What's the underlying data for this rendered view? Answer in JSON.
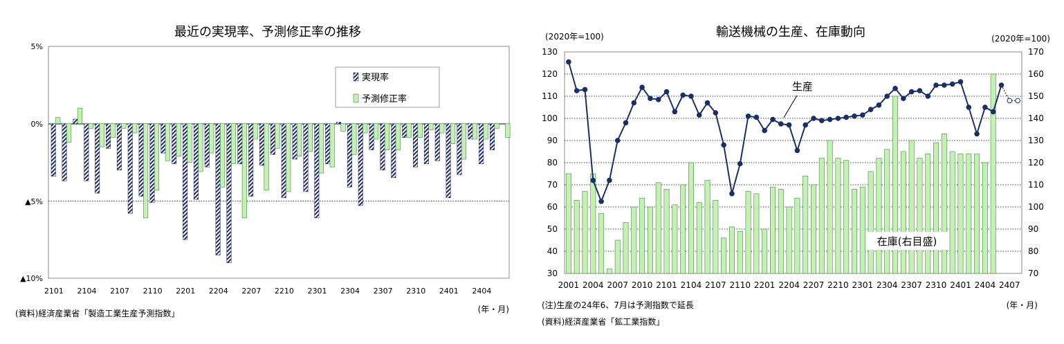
{
  "left": {
    "title": "最近の実現率、予測修正率の推移",
    "legend": [
      "実現率",
      "予測修正率"
    ],
    "source": "(資料)経済産業省「製造工業生産予測指数」",
    "unit": "(年・月)",
    "y_tick_labels": [
      "5%",
      "0%",
      "▲5%",
      "▲10%"
    ],
    "x_tick_labels": [
      "2101",
      "2104",
      "2107",
      "2110",
      "2201",
      "2204",
      "2207",
      "2210",
      "2301",
      "2304",
      "2307",
      "2310",
      "2401",
      "2404"
    ]
  },
  "right": {
    "title": "輸送機械の生産、在庫動向",
    "left_unit": "(2020年=100)",
    "right_unit": "(2020年=100)",
    "production_label": "生産",
    "inventory_label": "在庫(右目盛)",
    "unit": "(年・月)",
    "note": "(注)生産の24年6、7月は予測指数で延長",
    "source": "(資料)経済産業省「鉱工業指数」",
    "y_left_tick_labels": [
      "130",
      "120",
      "110",
      "100",
      "90",
      "80",
      "70",
      "60",
      "50",
      "40",
      "30"
    ],
    "y_right_tick_labels": [
      "170",
      "160",
      "150",
      "140",
      "130",
      "120",
      "110",
      "100",
      "90",
      "80",
      "70"
    ],
    "x_tick_labels": [
      "2001",
      "2004",
      "2007",
      "2010",
      "2101",
      "2104",
      "2107",
      "2110",
      "2201",
      "2204",
      "2207",
      "2210",
      "2301",
      "2304",
      "2307",
      "2310",
      "2401",
      "2404",
      "2407"
    ]
  },
  "chart_data": [
    {
      "type": "bar",
      "title": "最近の実現率、予測修正率の推移",
      "xlabel": "(年・月)",
      "ylabel": "",
      "ylim": [
        -10,
        5
      ],
      "grid": "dotted line at -5%",
      "legend_position": "top-right",
      "categories": [
        "2101",
        "2102",
        "2103",
        "2104",
        "2105",
        "2106",
        "2107",
        "2108",
        "2109",
        "2110",
        "2111",
        "2112",
        "2201",
        "2202",
        "2203",
        "2204",
        "2205",
        "2206",
        "2207",
        "2208",
        "2209",
        "2210",
        "2211",
        "2212",
        "2301",
        "2302",
        "2303",
        "2304",
        "2305",
        "2306",
        "2307",
        "2308",
        "2309",
        "2310",
        "2311",
        "2312",
        "2401",
        "2402",
        "2403",
        "2404",
        "2405",
        "2406"
      ],
      "series": [
        {
          "name": "実現率",
          "pattern": "hatched",
          "color": "#1f2a6b",
          "values": [
            -3.4,
            -3.7,
            0.3,
            -3.7,
            -4.5,
            -1.6,
            -3.0,
            -5.8,
            -4.7,
            -5.1,
            -1.9,
            -2.6,
            -7.5,
            -4.9,
            -2.8,
            -8.5,
            -9.0,
            -2.6,
            -4.7,
            -2.7,
            -2.0,
            -4.8,
            -2.3,
            -4.4,
            -6.1,
            -2.6,
            0.1,
            -4.1,
            -5.3,
            -1.7,
            -3.0,
            -3.5,
            -0.9,
            -2.8,
            -2.6,
            -2.4,
            -4.8,
            -3.3,
            -1.0,
            -2.6,
            -1.7,
            0.0
          ]
        },
        {
          "name": "予測修正率",
          "pattern": "solid",
          "color": "#c6efb5",
          "values": [
            0.4,
            -1.2,
            1.0,
            -0.3,
            -1.5,
            -0.9,
            -0.3,
            -0.6,
            -6.1,
            -4.3,
            -2.4,
            -2.1,
            -2.5,
            -3.1,
            -1.9,
            -4.1,
            -2.6,
            -6.1,
            -1.0,
            -4.3,
            -1.6,
            -4.4,
            -2.1,
            -1.8,
            -3.2,
            -2.8,
            -0.5,
            -2.0,
            -0.6,
            -1.0,
            -1.7,
            -1.7,
            -0.9,
            -0.9,
            -0.4,
            -0.6,
            -1.3,
            -2.3,
            -1.0,
            -1.0,
            -0.3,
            -0.9
          ]
        }
      ]
    },
    {
      "type": "bar+line",
      "title": "輸送機械の生産、在庫動向",
      "xlabel": "(年・月)",
      "ylim_left": [
        30,
        130
      ],
      "ylim_right": [
        70,
        170
      ],
      "grid": "dotted horizontal lines at every 10",
      "x_start": "2001",
      "x_step": "month",
      "series": [
        {
          "name": "生産",
          "axis": "left",
          "type": "line",
          "color": "#1a2f66",
          "values": [
            125.5,
            112.5,
            113.0,
            72.0,
            62.5,
            72.0,
            90.0,
            98.0,
            107.0,
            114.0,
            109.0,
            108.5,
            112.0,
            103.0,
            110.5,
            110.0,
            101.5,
            107.0,
            102.5,
            88.0,
            66.0,
            79.5,
            101.0,
            100.5,
            94.5,
            99.5,
            97.5,
            97.0,
            85.5,
            97.0,
            100.0,
            99.0,
            99.5,
            100.0,
            100.5,
            101.0,
            101.5,
            104.0,
            106.0,
            110.0,
            113.5,
            109.0,
            112.0,
            112.5,
            110.0,
            115.0,
            115.0,
            115.5,
            116.5,
            105.0,
            93.0,
            105.0,
            103.0,
            115.0,
            108.0,
            108.0
          ],
          "forecast_points": 2
        },
        {
          "name": "在庫(右目盛)",
          "axis": "right",
          "type": "bar",
          "color": "#c6efb5",
          "values": [
            115,
            103,
            107,
            115,
            97,
            72,
            85,
            93,
            100,
            104,
            100,
            111,
            108,
            101,
            110,
            120,
            102,
            112,
            103,
            86,
            91,
            89,
            107,
            106,
            90,
            109,
            108,
            100,
            104,
            114,
            110,
            122,
            130,
            122,
            121,
            108,
            109,
            116,
            122,
            126,
            150,
            125,
            130,
            122,
            124,
            129,
            133,
            125,
            124,
            124,
            124,
            120,
            160
          ]
        }
      ]
    }
  ]
}
